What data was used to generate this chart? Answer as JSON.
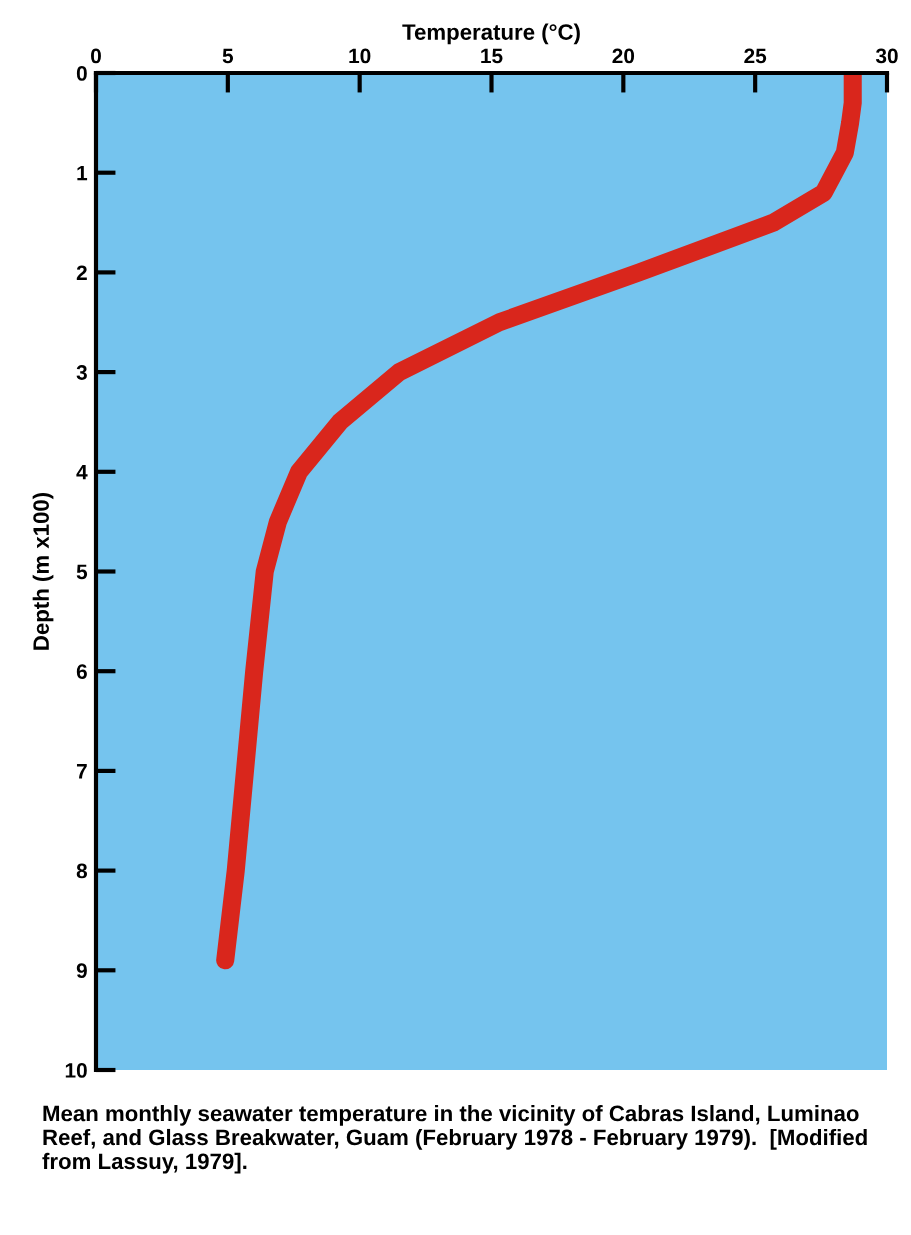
{
  "chart_data": {
    "type": "line",
    "xlabel": "Temperature (°C)",
    "ylabel": "Depth (m x100)",
    "x": [
      28.7,
      28.7,
      28.6,
      28.4,
      28.0,
      27.6,
      25.7,
      20.6,
      15.3,
      11.5,
      9.25,
      7.7,
      6.9,
      6.4,
      6.0,
      5.65,
      5.3,
      4.9
    ],
    "series": [
      {
        "color": "#d9261c",
        "values": [
          0,
          0.3,
          0.5,
          0.8,
          1.0,
          1.2,
          1.5,
          2.0,
          2.5,
          3.0,
          3.5,
          4.0,
          4.5,
          5.0,
          6.0,
          7.0,
          8.0,
          8.9
        ]
      }
    ],
    "xlim": [
      0,
      30
    ],
    "xticks": [
      0,
      5,
      10,
      15,
      20,
      25,
      30
    ],
    "ylim": [
      10,
      0
    ],
    "yticks": [
      0,
      1,
      2,
      3,
      4,
      5,
      6,
      7,
      8,
      9,
      10
    ],
    "grid": false,
    "legend": false,
    "line_style": "solid",
    "annotations": [
      "Mean monthly seawater temperature in the vicinity of Cabras Island, Luminao Reef, and Glass Breakwater, Guam (February 1978 - February 1979).  [Modified from Lassuy, 1979]."
    ]
  }
}
